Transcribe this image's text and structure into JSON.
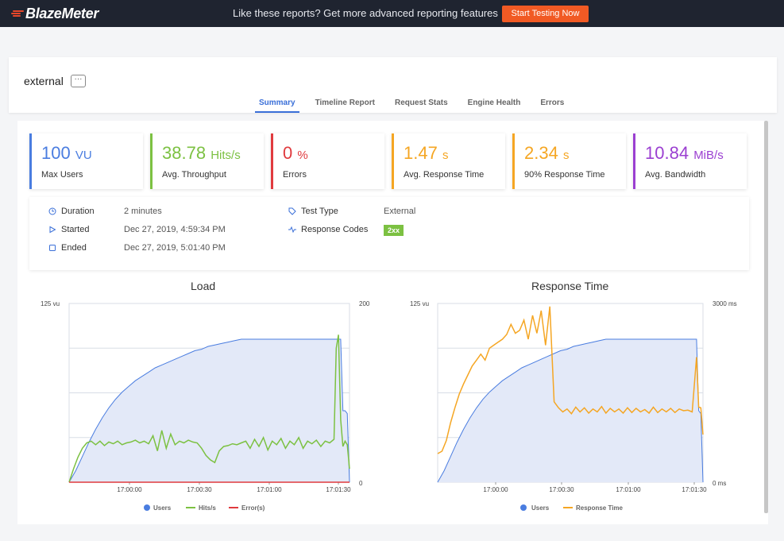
{
  "topbar": {
    "logo": "BlazeMeter",
    "promo": "Like these reports? Get more advanced reporting features",
    "cta": "Start Testing Now"
  },
  "header": {
    "test_name": "external",
    "more": "···",
    "tabs": [
      "Summary",
      "Timeline Report",
      "Request Stats",
      "Engine Health",
      "Errors"
    ],
    "active_tab": "Summary"
  },
  "kpis": [
    {
      "value": "100",
      "unit": "VU",
      "label": "Max Users",
      "color": "#4a7de0"
    },
    {
      "value": "38.78",
      "unit": "Hits/s",
      "label": "Avg. Throughput",
      "color": "#7cc142"
    },
    {
      "value": "0",
      "unit": "%",
      "label": "Errors",
      "color": "#e03a3e"
    },
    {
      "value": "1.47",
      "unit": "s",
      "label": "Avg. Response Time",
      "color": "#f5a623"
    },
    {
      "value": "2.34",
      "unit": "s",
      "label": "90% Response Time",
      "color": "#f5a623"
    },
    {
      "value": "10.84",
      "unit": "MiB/s",
      "label": "Avg. Bandwidth",
      "color": "#9b3fd1"
    }
  ],
  "info": {
    "duration_label": "Duration",
    "duration": "2 minutes",
    "started_label": "Started",
    "started": "Dec 27, 2019, 4:59:34 PM",
    "ended_label": "Ended",
    "ended": "Dec 27, 2019, 5:01:40 PM",
    "test_type_label": "Test Type",
    "test_type": "External",
    "response_codes_label": "Response Codes",
    "response_code": "2xx"
  },
  "colors": {
    "users": "#4a7de0",
    "hits": "#7cc142",
    "errors": "#e03a3e",
    "response": "#f5a623",
    "fill": "#e3e9f8"
  },
  "chart_data": [
    {
      "type": "line",
      "title": "Load",
      "x_ticks": [
        "17:00:00",
        "17:00:30",
        "17:01:00",
        "17:01:30"
      ],
      "y_left_ticks": [
        "125 vu"
      ],
      "y_right_ticks": [
        "200",
        "0"
      ],
      "ylim_left": [
        0,
        125
      ],
      "ylim_right": [
        0,
        200
      ],
      "legend": [
        "Users",
        "Hits/s",
        "Error(s)"
      ],
      "series": [
        {
          "name": "Users",
          "axis": "left",
          "x": [
            0,
            3,
            6,
            9,
            12,
            15,
            18,
            21,
            24,
            27,
            30,
            33,
            36,
            39,
            42,
            45,
            48,
            51,
            54,
            57,
            60,
            63,
            66,
            69,
            72,
            75,
            78,
            81,
            84,
            87,
            90,
            93,
            96,
            99,
            102,
            105,
            108,
            111,
            114,
            117,
            120,
            123,
            124,
            125,
            126,
            127
          ],
          "values": [
            0,
            8,
            18,
            28,
            37,
            45,
            52,
            58,
            63,
            67,
            71,
            74,
            77,
            80,
            82,
            84,
            86,
            88,
            90,
            92,
            93,
            95,
            96,
            97,
            98,
            99,
            100,
            100,
            100,
            100,
            100,
            100,
            100,
            100,
            100,
            100,
            100,
            100,
            100,
            100,
            100,
            100,
            50,
            50,
            48,
            0
          ]
        },
        {
          "name": "Hits/s",
          "axis": "right",
          "x": [
            0,
            2,
            4,
            6,
            8,
            10,
            12,
            14,
            16,
            18,
            20,
            22,
            24,
            26,
            28,
            30,
            32,
            34,
            36,
            38,
            40,
            42,
            44,
            46,
            48,
            50,
            52,
            54,
            56,
            58,
            60,
            62,
            64,
            66,
            68,
            70,
            72,
            74,
            76,
            78,
            80,
            82,
            84,
            86,
            88,
            90,
            92,
            94,
            96,
            98,
            100,
            102,
            104,
            106,
            108,
            110,
            112,
            114,
            116,
            118,
            120,
            121,
            122,
            123,
            124,
            125,
            126,
            127
          ],
          "values": [
            0,
            15,
            28,
            38,
            44,
            46,
            42,
            46,
            41,
            45,
            43,
            46,
            42,
            44,
            45,
            47,
            44,
            46,
            43,
            52,
            35,
            58,
            38,
            54,
            42,
            46,
            44,
            47,
            45,
            44,
            38,
            30,
            25,
            22,
            35,
            40,
            41,
            43,
            42,
            44,
            46,
            38,
            48,
            40,
            50,
            36,
            46,
            42,
            49,
            38,
            46,
            42,
            50,
            38,
            46,
            43,
            47,
            40,
            46,
            44,
            48,
            150,
            165,
            70,
            40,
            46,
            42,
            15
          ]
        },
        {
          "name": "Error(s)",
          "axis": "right",
          "x": [
            0,
            127
          ],
          "values": [
            0,
            0
          ]
        }
      ]
    },
    {
      "type": "line",
      "title": "Response Time",
      "x_ticks": [
        "17:00:00",
        "17:00:30",
        "17:01:00",
        "17:01:30"
      ],
      "y_left_ticks": [
        "125 vu"
      ],
      "y_right_ticks": [
        "3000 ms",
        "0 ms"
      ],
      "ylim_left": [
        0,
        125
      ],
      "ylim_right": [
        0,
        3000
      ],
      "legend": [
        "Users",
        "Response Time"
      ],
      "series": [
        {
          "name": "Users",
          "axis": "left",
          "x": [
            0,
            3,
            6,
            9,
            12,
            15,
            18,
            21,
            24,
            27,
            30,
            33,
            36,
            39,
            42,
            45,
            48,
            51,
            54,
            57,
            60,
            63,
            66,
            69,
            72,
            75,
            78,
            81,
            84,
            87,
            90,
            93,
            96,
            99,
            102,
            105,
            108,
            111,
            114,
            117,
            120,
            121,
            122,
            123
          ],
          "values": [
            0,
            8,
            18,
            28,
            37,
            45,
            52,
            58,
            63,
            67,
            71,
            74,
            77,
            80,
            82,
            84,
            86,
            88,
            90,
            92,
            93,
            95,
            96,
            97,
            98,
            99,
            100,
            100,
            100,
            100,
            100,
            100,
            100,
            100,
            100,
            100,
            100,
            100,
            100,
            100,
            100,
            50,
            48,
            0
          ]
        },
        {
          "name": "Response Time",
          "axis": "right",
          "x": [
            0,
            2,
            4,
            6,
            8,
            10,
            12,
            14,
            16,
            18,
            20,
            22,
            24,
            26,
            28,
            30,
            32,
            34,
            36,
            38,
            40,
            42,
            44,
            46,
            48,
            50,
            52,
            54,
            56,
            58,
            60,
            62,
            64,
            66,
            68,
            70,
            72,
            74,
            76,
            78,
            80,
            82,
            84,
            86,
            88,
            90,
            92,
            94,
            96,
            98,
            100,
            102,
            104,
            106,
            108,
            110,
            112,
            114,
            116,
            118,
            120,
            121,
            122,
            123
          ],
          "values": [
            480,
            520,
            700,
            1000,
            1250,
            1480,
            1650,
            1800,
            1950,
            2050,
            2150,
            2050,
            2250,
            2300,
            2350,
            2400,
            2480,
            2650,
            2500,
            2550,
            2720,
            2400,
            2800,
            2500,
            2880,
            2300,
            2950,
            1350,
            1250,
            1180,
            1230,
            1150,
            1260,
            1180,
            1250,
            1160,
            1230,
            1180,
            1270,
            1160,
            1240,
            1180,
            1230,
            1160,
            1250,
            1170,
            1240,
            1180,
            1220,
            1160,
            1260,
            1170,
            1230,
            1180,
            1240,
            1170,
            1230,
            1200,
            1210,
            1180,
            2100,
            1260,
            1250,
            800
          ]
        }
      ]
    }
  ]
}
